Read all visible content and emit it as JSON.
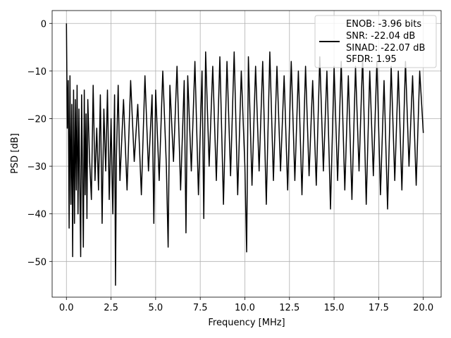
{
  "chart_data": {
    "type": "line",
    "title": "",
    "xlabel": "Frequency [MHz]",
    "ylabel": "PSD [dB]",
    "xlim": [
      -0.8,
      21.0
    ],
    "ylim": [
      -57.5,
      2.7
    ],
    "xticks": [
      0.0,
      2.5,
      5.0,
      7.5,
      10.0,
      12.5,
      15.0,
      17.5,
      20.0
    ],
    "xtick_labels": [
      "0.0",
      "2.5",
      "5.0",
      "7.5",
      "10.0",
      "12.5",
      "15.0",
      "17.5",
      "20.0"
    ],
    "yticks": [
      0,
      -10,
      -20,
      -30,
      -40,
      -50
    ],
    "ytick_labels": [
      "0",
      "−10",
      "−20",
      "−30",
      "−40",
      "−50"
    ],
    "grid": true,
    "legend_position": "top-right",
    "legend_lines": [
      "ENOB: -3.96 bits",
      "SNR: -22.04 dB",
      "SINAD: -22.07 dB",
      "SFDR: 1.95"
    ],
    "line_color": "#000000",
    "series": [
      {
        "x": [
          0.0,
          0.05,
          0.1,
          0.15,
          0.2,
          0.25,
          0.3,
          0.35,
          0.4,
          0.45,
          0.5,
          0.55,
          0.6,
          0.65,
          0.7,
          0.75,
          0.8,
          0.85,
          0.9,
          0.95,
          1.0,
          1.05,
          1.1,
          1.15,
          1.2,
          1.3,
          1.4,
          1.5,
          1.6,
          1.7,
          1.8,
          1.9,
          2.0,
          2.1,
          2.2,
          2.3,
          2.4,
          2.5,
          2.6,
          2.7,
          2.75,
          2.8,
          2.9,
          3.0,
          3.2,
          3.4,
          3.6,
          3.8,
          4.0,
          4.2,
          4.4,
          4.6,
          4.8,
          4.9,
          5.0,
          5.2,
          5.4,
          5.6,
          5.7,
          5.8,
          6.0,
          6.2,
          6.4,
          6.6,
          6.7,
          6.8,
          7.0,
          7.2,
          7.4,
          7.6,
          7.7,
          7.8,
          8.0,
          8.2,
          8.4,
          8.6,
          8.8,
          9.0,
          9.2,
          9.4,
          9.6,
          9.8,
          10.0,
          10.1,
          10.2,
          10.4,
          10.6,
          10.8,
          11.0,
          11.2,
          11.4,
          11.6,
          11.8,
          12.0,
          12.2,
          12.4,
          12.6,
          12.8,
          13.0,
          13.2,
          13.4,
          13.6,
          13.8,
          14.0,
          14.2,
          14.4,
          14.6,
          14.8,
          15.0,
          15.2,
          15.4,
          15.6,
          15.8,
          16.0,
          16.2,
          16.4,
          16.6,
          16.8,
          17.0,
          17.2,
          17.4,
          17.6,
          17.8,
          18.0,
          18.2,
          18.4,
          18.6,
          18.8,
          19.0,
          19.2,
          19.4,
          19.6,
          19.8,
          20.0
        ],
        "y": [
          0.0,
          -22.0,
          -12.0,
          -43.0,
          -11.0,
          -38.0,
          -17.0,
          -49.0,
          -14.0,
          -42.0,
          -16.0,
          -35.0,
          -13.0,
          -40.0,
          -18.0,
          -33.0,
          -49.0,
          -15.0,
          -30.0,
          -47.0,
          -14.0,
          -36.0,
          -19.0,
          -41.0,
          -16.0,
          -29.0,
          -37.0,
          -13.0,
          -33.0,
          -22.0,
          -35.0,
          -15.0,
          -42.0,
          -18.0,
          -31.0,
          -14.0,
          -37.0,
          -20.0,
          -40.0,
          -15.0,
          -55.0,
          -28.0,
          -13.0,
          -33.0,
          -16.0,
          -35.0,
          -12.0,
          -29.0,
          -17.0,
          -36.0,
          -11.0,
          -31.0,
          -15.0,
          -42.0,
          -14.0,
          -33.0,
          -10.0,
          -30.0,
          -47.0,
          -13.0,
          -29.0,
          -9.0,
          -35.0,
          -12.0,
          -44.0,
          -11.0,
          -31.0,
          -8.0,
          -36.0,
          -10.0,
          -41.0,
          -6.0,
          -30.0,
          -9.0,
          -33.0,
          -7.0,
          -38.0,
          -8.0,
          -32.0,
          -6.0,
          -36.0,
          -10.0,
          -30.0,
          -48.0,
          -7.0,
          -34.0,
          -9.0,
          -31.0,
          -8.0,
          -38.0,
          -6.0,
          -33.0,
          -9.0,
          -31.0,
          -11.0,
          -35.0,
          -8.0,
          -33.0,
          -10.0,
          -36.0,
          -9.0,
          -32.0,
          -12.0,
          -34.0,
          -7.0,
          -31.0,
          -10.0,
          -39.0,
          -9.0,
          -33.0,
          -8.0,
          -35.0,
          -11.0,
          -37.0,
          -9.0,
          -31.0,
          -7.0,
          -38.0,
          -10.0,
          -32.0,
          -8.0,
          -36.0,
          -12.0,
          -39.0,
          -9.0,
          -33.0,
          -10.0,
          -35.0,
          -8.0,
          -30.0,
          -11.0,
          -34.0,
          -10.0,
          -23.0
        ]
      }
    ]
  }
}
